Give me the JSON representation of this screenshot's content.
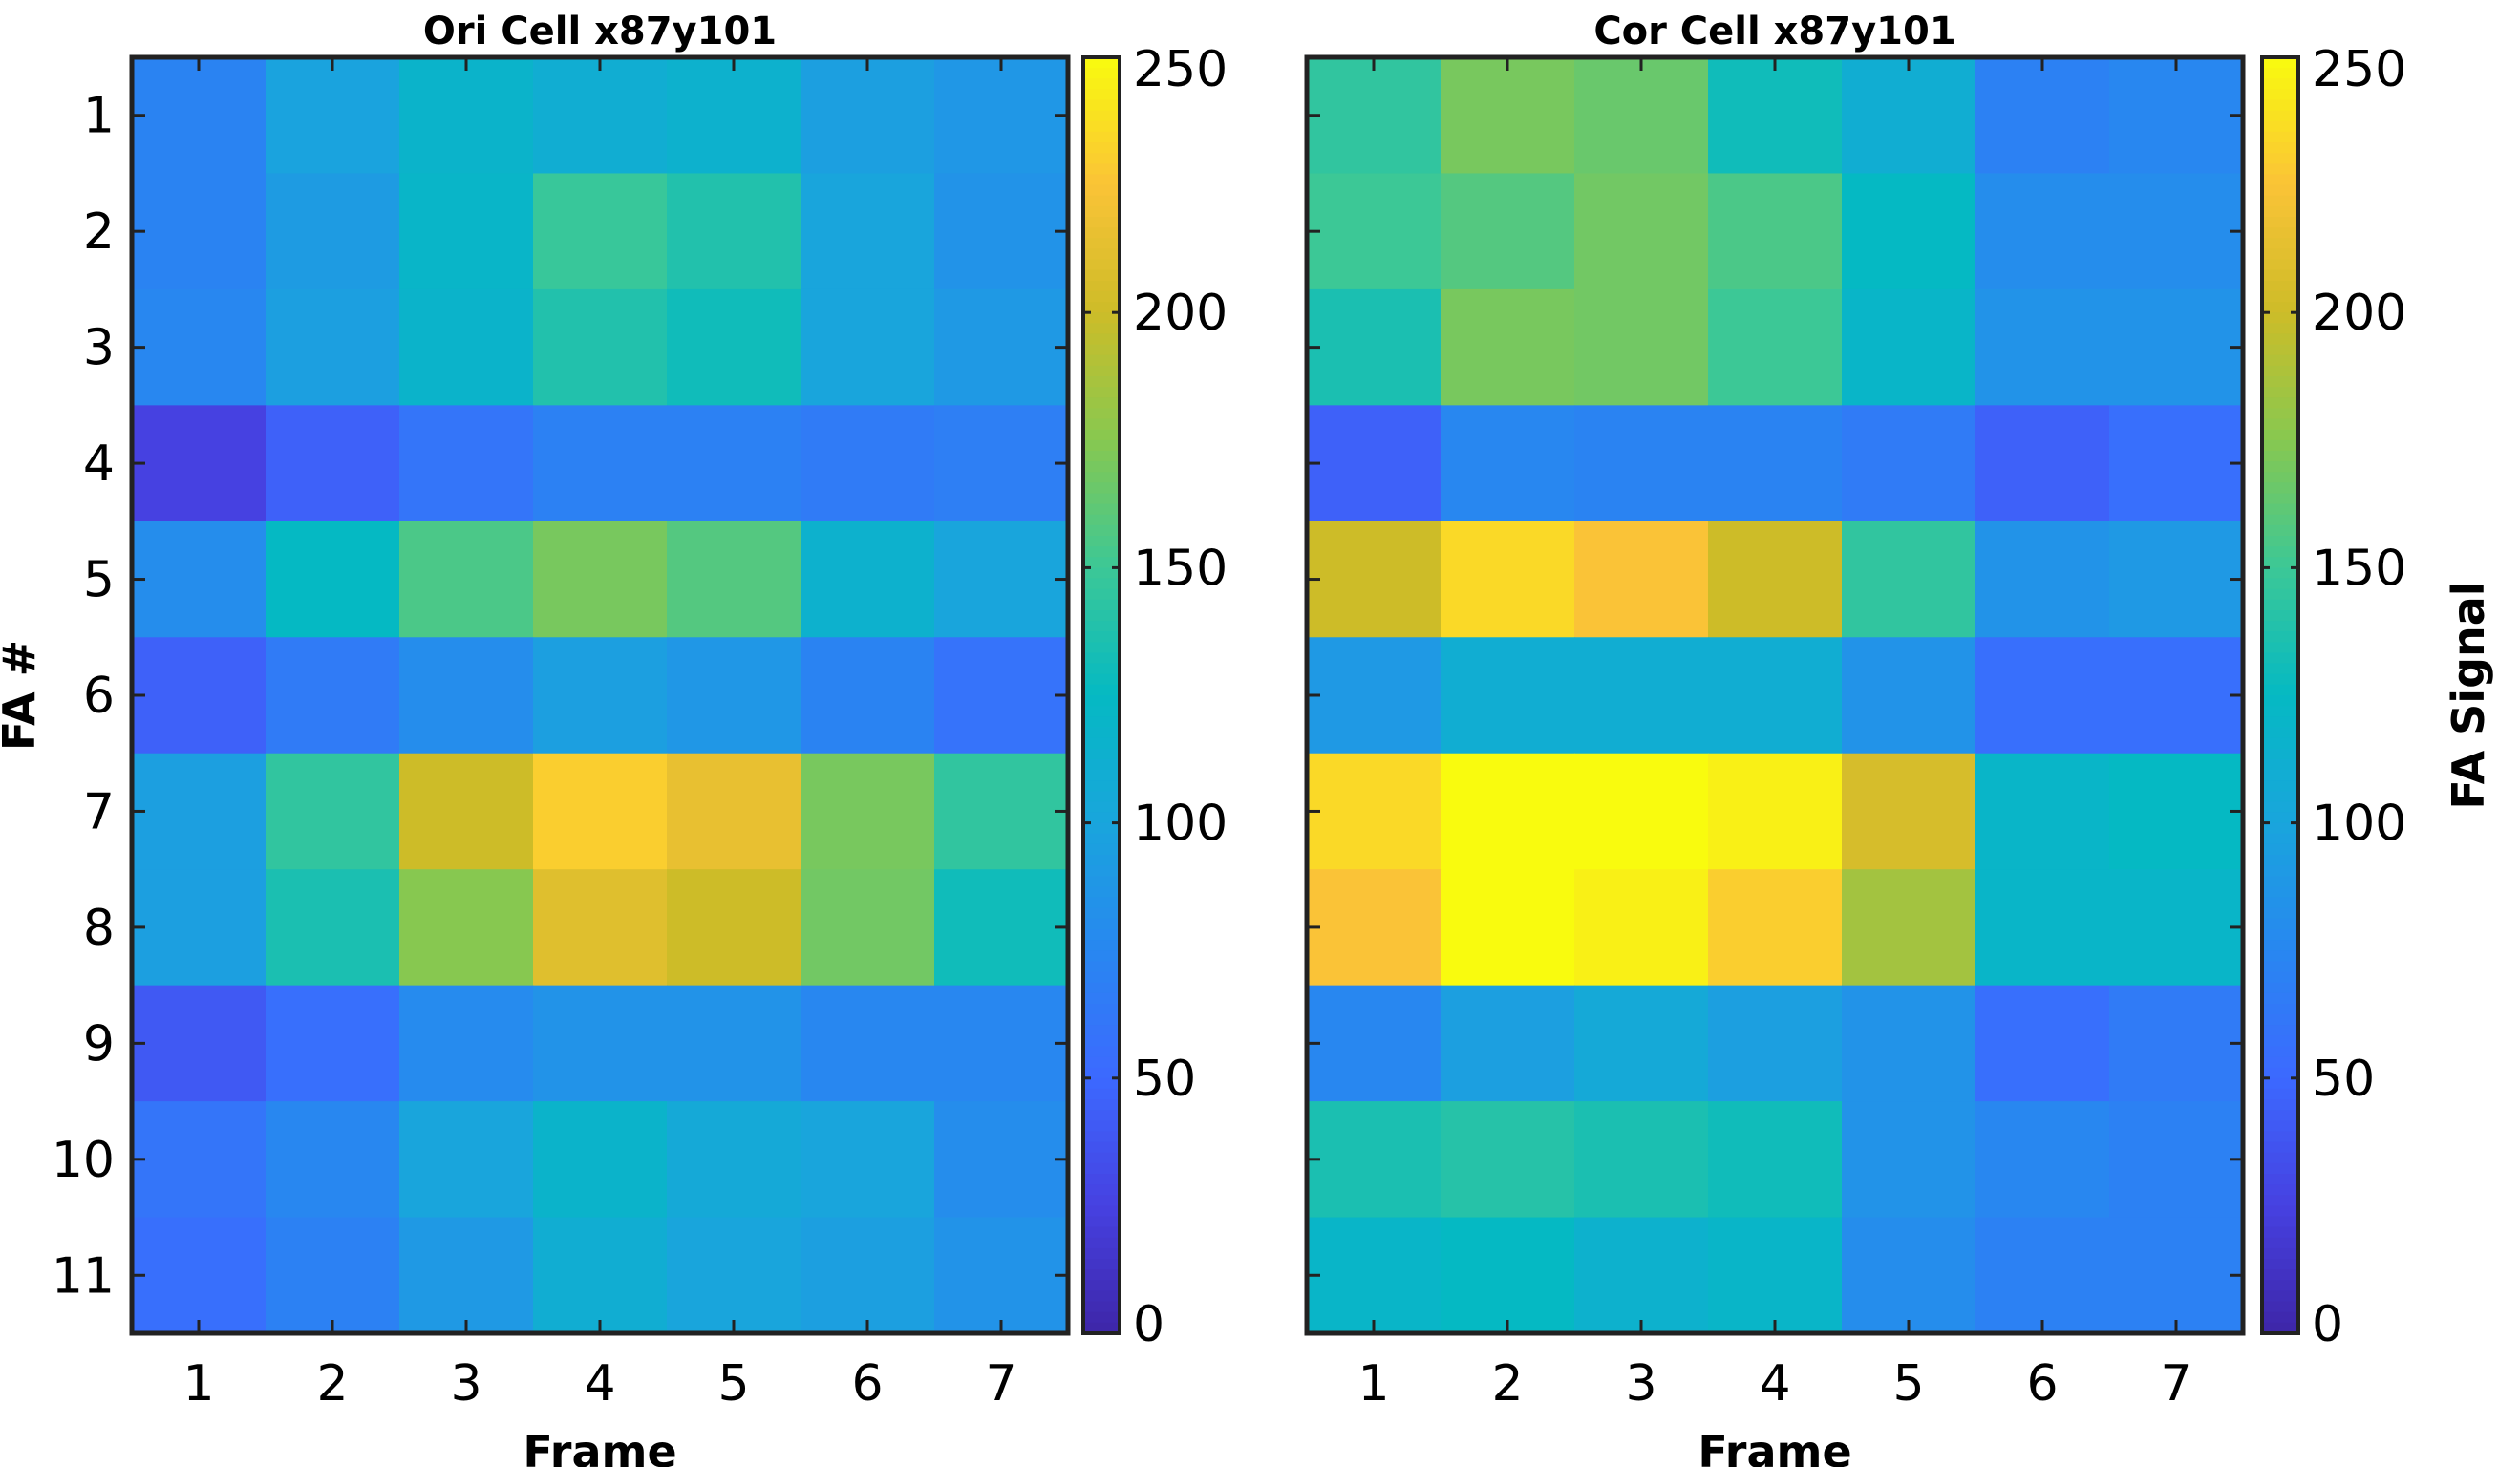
{
  "chart_data": [
    {
      "type": "heatmap",
      "title": "Ori Cell x87y101",
      "xlabel": "Frame",
      "ylabel": "FA #",
      "x": [
        1,
        2,
        3,
        4,
        5,
        6,
        7
      ],
      "y": [
        1,
        2,
        3,
        4,
        5,
        6,
        7,
        8,
        9,
        10,
        11
      ],
      "values": [
        [
          72,
          98,
          118,
          110,
          115,
          95,
          88
        ],
        [
          72,
          92,
          120,
          148,
          138,
          100,
          85
        ],
        [
          75,
          95,
          118,
          138,
          130,
          100,
          90
        ],
        [
          25,
          45,
          60,
          70,
          70,
          65,
          68
        ],
        [
          80,
          125,
          155,
          170,
          158,
          115,
          100
        ],
        [
          45,
          65,
          80,
          95,
          88,
          72,
          58
        ],
        [
          95,
          145,
          200,
          230,
          215,
          170,
          145
        ],
        [
          95,
          135,
          175,
          210,
          200,
          168,
          130
        ],
        [
          40,
          55,
          78,
          85,
          85,
          75,
          75
        ],
        [
          60,
          75,
          100,
          118,
          105,
          100,
          80
        ],
        [
          55,
          70,
          90,
          110,
          100,
          95,
          85
        ]
      ],
      "colorbar": {
        "min": 0,
        "max": 250,
        "ticks": [
          0,
          50,
          100,
          150,
          200,
          250
        ]
      }
    },
    {
      "type": "heatmap",
      "title": "Cor Cell x87y101",
      "xlabel": "Frame",
      "ylabel": "",
      "x": [
        1,
        2,
        3,
        4,
        5,
        6,
        7
      ],
      "y": [
        1,
        2,
        3,
        4,
        5,
        6,
        7,
        8,
        9,
        10,
        11
      ],
      "values": [
        [
          145,
          170,
          165,
          130,
          110,
          70,
          75
        ],
        [
          150,
          158,
          168,
          155,
          125,
          80,
          80
        ],
        [
          135,
          170,
          168,
          150,
          120,
          85,
          85
        ],
        [
          45,
          75,
          72,
          72,
          65,
          45,
          55
        ],
        [
          200,
          235,
          225,
          200,
          145,
          85,
          90
        ],
        [
          90,
          110,
          110,
          110,
          85,
          55,
          55
        ],
        [
          235,
          250,
          250,
          245,
          205,
          120,
          125
        ],
        [
          225,
          250,
          245,
          230,
          185,
          120,
          120
        ],
        [
          75,
          95,
          105,
          95,
          85,
          55,
          65
        ],
        [
          135,
          140,
          135,
          130,
          85,
          75,
          70
        ],
        [
          120,
          125,
          115,
          120,
          80,
          70,
          70
        ]
      ],
      "colorbar": {
        "min": 0,
        "max": 250,
        "ticks": [
          0,
          50,
          100,
          150,
          200,
          250
        ],
        "label": "FA Signal"
      }
    }
  ]
}
